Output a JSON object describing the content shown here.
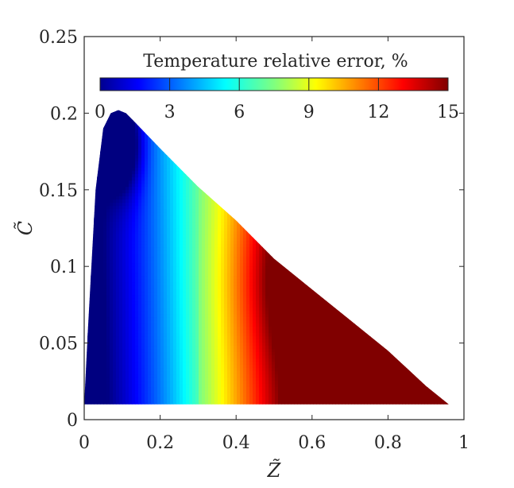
{
  "chart_data": {
    "type": "heatmap",
    "title": "",
    "xlabel": "Z̃",
    "ylabel": "C̃",
    "xlim": [
      0,
      1
    ],
    "ylim": [
      0,
      0.25
    ],
    "x_ticks": [
      "0",
      "0.2",
      "0.4",
      "0.6",
      "0.8",
      "1"
    ],
    "y_ticks": [
      "0",
      "0.05",
      "0.1",
      "0.15",
      "0.2",
      "0.25"
    ],
    "colorbar": {
      "title": "Temperature relative error, %",
      "range": [
        0,
        15
      ],
      "ticks": [
        "0",
        "3",
        "6",
        "9",
        "12",
        "15"
      ],
      "colormap": "jet",
      "placement": "top-inside"
    },
    "domain_boundary": {
      "x": [
        0.0,
        0.01,
        0.03,
        0.05,
        0.07,
        0.09,
        0.11,
        0.13,
        0.2,
        0.3,
        0.4,
        0.5,
        0.6,
        0.7,
        0.8,
        0.9,
        0.96
      ],
      "y": [
        0.01,
        0.06,
        0.15,
        0.19,
        0.2,
        0.202,
        0.2,
        0.195,
        0.177,
        0.152,
        0.13,
        0.105,
        0.085,
        0.065,
        0.045,
        0.022,
        0.01
      ]
    },
    "field_description_values": {
      "low_error_region": {
        "x": [
          0.02,
          0.2
        ],
        "y": [
          0.01,
          0.2
        ],
        "error_percent": [
          0,
          3
        ]
      },
      "high_error_region": {
        "x": [
          0.5,
          0.9
        ],
        "y": [
          0.02,
          0.12
        ],
        "error_percent": [
          13,
          15
        ]
      }
    }
  }
}
